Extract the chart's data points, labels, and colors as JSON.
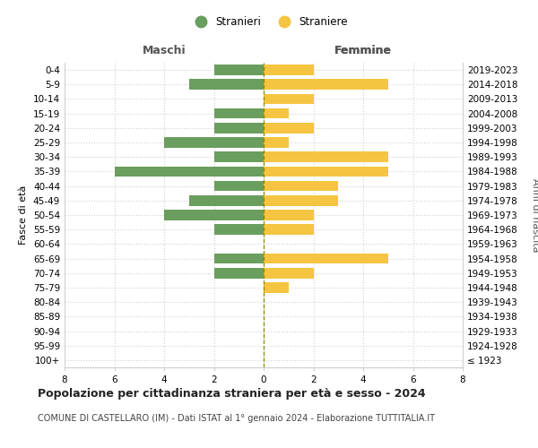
{
  "age_groups": [
    "100+",
    "95-99",
    "90-94",
    "85-89",
    "80-84",
    "75-79",
    "70-74",
    "65-69",
    "60-64",
    "55-59",
    "50-54",
    "45-49",
    "40-44",
    "35-39",
    "30-34",
    "25-29",
    "20-24",
    "15-19",
    "10-14",
    "5-9",
    "0-4"
  ],
  "birth_years": [
    "≤ 1923",
    "1924-1928",
    "1929-1933",
    "1934-1938",
    "1939-1943",
    "1944-1948",
    "1949-1953",
    "1954-1958",
    "1959-1963",
    "1964-1968",
    "1969-1973",
    "1974-1978",
    "1979-1983",
    "1984-1988",
    "1989-1993",
    "1994-1998",
    "1999-2003",
    "2004-2008",
    "2009-2013",
    "2014-2018",
    "2019-2023"
  ],
  "maschi": [
    0,
    0,
    0,
    0,
    0,
    0,
    2,
    2,
    0,
    2,
    4,
    3,
    2,
    6,
    2,
    4,
    2,
    2,
    0,
    3,
    2
  ],
  "femmine": [
    0,
    0,
    0,
    0,
    0,
    1,
    2,
    5,
    0,
    2,
    2,
    3,
    3,
    5,
    5,
    1,
    2,
    1,
    2,
    5,
    2
  ],
  "color_maschi": "#6a9e5e",
  "color_femmine": "#f5c542",
  "background_color": "#ffffff",
  "grid_color": "#d0d0d0",
  "title": "Popolazione per cittadinanza straniera per età e sesso - 2024",
  "subtitle": "COMUNE DI CASTELLARO (IM) - Dati ISTAT al 1° gennaio 2024 - Elaborazione TUTTITALIA.IT",
  "ylabel_left": "Fasce di età",
  "ylabel_right": "Anni di nascita",
  "xlabel_maschi": "Maschi",
  "xlabel_femmine": "Femmine",
  "legend_maschi": "Stranieri",
  "legend_femmine": "Straniere",
  "xlim": 8,
  "title_fontsize": 9,
  "subtitle_fontsize": 7,
  "axis_label_fontsize": 8,
  "tick_fontsize": 7.5,
  "header_fontsize": 9
}
